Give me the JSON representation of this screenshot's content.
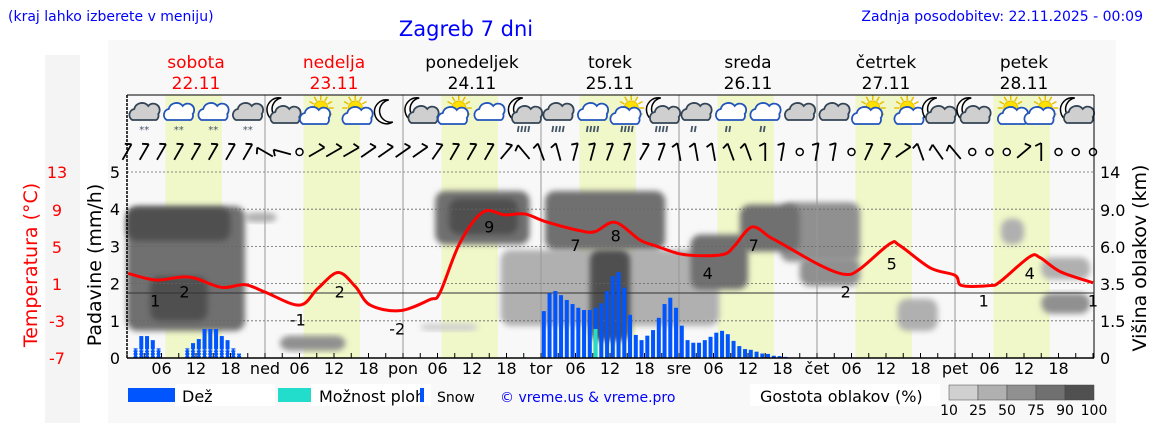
{
  "header": {
    "hint": "(kraj lahko izberete v meniju)",
    "title": "Zagreb 7 dni",
    "updated": "Zadnja posodobitev: 22.11.2025 - 00:09"
  },
  "days": [
    {
      "name": "sobota",
      "date": "22.11",
      "abbr": "",
      "color": "#ff0000"
    },
    {
      "name": "nedelja",
      "date": "23.11",
      "abbr": "ned",
      "color": "#ff0000"
    },
    {
      "name": "ponedeljek",
      "date": "24.11",
      "abbr": "pon",
      "color": "#000000"
    },
    {
      "name": "torek",
      "date": "25.11",
      "abbr": "tor",
      "color": "#000000"
    },
    {
      "name": "sreda",
      "date": "26.11",
      "abbr": "sre",
      "color": "#000000"
    },
    {
      "name": "četrtek",
      "date": "27.11",
      "abbr": "čet",
      "color": "#000000"
    },
    {
      "name": "petek",
      "date": "28.11",
      "abbr": "pet",
      "color": "#000000"
    }
  ],
  "hour_ticks": [
    "06",
    "12",
    "18"
  ],
  "weather_icons": [
    "cloud-snow",
    "cloud-snow",
    "cloud-snow",
    "cloud-snow",
    "moon-cloud",
    "sun-cloud",
    "sun-small-cloud",
    "moon",
    "moon-cloud",
    "sun-cloud",
    "cloud",
    "moon-cloud-rain",
    "cloud-rain",
    "cloud-rain",
    "sun-cloud-rain",
    "moon-cloud-rain",
    "cloud-light-rain",
    "cloud-light-rain",
    "cloud-light-rain",
    "cloud",
    "cloud",
    "sun-cloud",
    "sun-small-cloud",
    "moon-cloud",
    "moon-cloud",
    "sun-small-cloud",
    "sun-cloud",
    "moon-cloud"
  ],
  "wind_barbs": [
    30,
    30,
    30,
    30,
    30,
    30,
    30,
    30,
    -60,
    -75,
    "calm",
    60,
    60,
    60,
    55,
    55,
    55,
    55,
    35,
    30,
    30,
    30,
    40,
    -40,
    -20,
    -15,
    15,
    15,
    20,
    20,
    30,
    20,
    -10,
    -10,
    -10,
    -20,
    -20,
    0,
    10,
    "calm",
    10,
    10,
    "calm",
    25,
    30,
    55,
    -20,
    -35,
    -40,
    "calm",
    "calm",
    "calm",
    50,
    0,
    "calm",
    "calm",
    "calm"
  ],
  "chart_data": {
    "type": "meteogram",
    "x_unit": "hours from 22.11 00:00",
    "daylight_hours": [
      6.7,
      16.5
    ],
    "left_axis_temperature": {
      "label": "Temperatura (°C)",
      "ticks": [
        13,
        9,
        5,
        1,
        -3,
        -7
      ],
      "range": [
        -7,
        13
      ],
      "color": "#ff0000"
    },
    "left_axis_precip": {
      "label": "Padavine (mm/h)",
      "ticks": [
        0,
        1,
        2,
        3,
        4,
        5
      ],
      "range": [
        0,
        5
      ]
    },
    "right_axis_cloud": {
      "label": "Višina oblakov (km)",
      "ticks": [
        "0",
        "1.5",
        "3.5",
        "6.0",
        "9.0",
        "14"
      ]
    },
    "temperature": {
      "hours": [
        0.2,
        4.9,
        9.2,
        11.8,
        16.5,
        20.5,
        24,
        30,
        33.2,
        36.7,
        39.7,
        42.3,
        47.5,
        52.7,
        54.4,
        57.9,
        61.9,
        65.7,
        69.2,
        72.7,
        78.8,
        81.4,
        84.9,
        89.2,
        91.8,
        96.2,
        100.5,
        104,
        105.7,
        108.7,
        111.8,
        113.6,
        120.5,
        124.9,
        127.5,
        132.7,
        134.4,
        139.7,
        144,
        145.2,
        150.1,
        151.8,
        157,
        158.8,
        162.3,
        168
      ],
      "values": [
        2.1,
        1.4,
        1.7,
        1.6,
        0.6,
        0.9,
        0.1,
        -1.3,
        0.5,
        2.2,
        0.7,
        -1.3,
        -1.9,
        -0.7,
        0.0,
        5.4,
        8.7,
        8.4,
        8.5,
        7.7,
        6.7,
        6.6,
        7.6,
        5.7,
        5.1,
        4.2,
        4.0,
        4.2,
        5.1,
        7.1,
        6.0,
        5.4,
        3.0,
        2.0,
        2.6,
        5.3,
        5.1,
        2.7,
        1.9,
        0.8,
        0.8,
        1.2,
        3.9,
        3.8,
        2.3,
        1.1
      ],
      "color": "#ff0000"
    },
    "temperature_labels": [
      {
        "hour": 4.9,
        "value": "1"
      },
      {
        "hour": 10,
        "value": "2"
      },
      {
        "hour": 29.7,
        "value": "-1"
      },
      {
        "hour": 37,
        "value": "2"
      },
      {
        "hour": 47,
        "value": "-2"
      },
      {
        "hour": 63,
        "value": "9"
      },
      {
        "hour": 78,
        "value": "7"
      },
      {
        "hour": 85,
        "value": "8"
      },
      {
        "hour": 101,
        "value": "4"
      },
      {
        "hour": 109,
        "value": "7"
      },
      {
        "hour": 125,
        "value": "2"
      },
      {
        "hour": 133,
        "value": "5"
      },
      {
        "hour": 149,
        "value": "1"
      },
      {
        "hour": 157,
        "value": "4"
      },
      {
        "hour": 168,
        "value": "1"
      }
    ],
    "precipitation": [
      {
        "start_hour": 1,
        "snow": true,
        "values": [
          0.26,
          0.59,
          0.59,
          0.48,
          0.26
        ]
      },
      {
        "start_hour": 10,
        "snow": true,
        "values": [
          0.26,
          0.4,
          0.51,
          0.78,
          0.78,
          0.78,
          0.59,
          0.48,
          0.26,
          0.12
        ]
      },
      {
        "start_hour": 72,
        "snow": false,
        "values": [
          1.26,
          1.74,
          1.8,
          1.69,
          1.56,
          1.45,
          1.35,
          1.29,
          1.29,
          1.35,
          1.47,
          1.8,
          2.2,
          2.31,
          1.89,
          1.16,
          0.62,
          0.48,
          0.6,
          0.75,
          1.08,
          1.45,
          1.62,
          1.35,
          0.87,
          0.48,
          0.41,
          0.41,
          0.48,
          0.57,
          0.68,
          0.73,
          0.64,
          0.46,
          0.32,
          0.24,
          0.22,
          0.17,
          0.12,
          0.11,
          0.06,
          0.05,
          0.03
        ]
      }
    ],
    "showers_possible": [
      {
        "hour": 81,
        "value": 0.78
      }
    ],
    "precip_color": "#0055ff",
    "showers_color": "#22ddcc",
    "cloud_density_regions": [
      {
        "hours": [
          0,
          20.5
        ],
        "km": [
          1.1,
          9.5
        ],
        "density": 75
      },
      {
        "hours": [
          0,
          18
        ],
        "km": [
          6.5,
          9.3
        ],
        "density": 90
      },
      {
        "hours": [
          4,
          14
        ],
        "km": [
          1.5,
          4
        ],
        "density": 90
      },
      {
        "hours": [
          20.5,
          26
        ],
        "km": [
          8,
          8.8
        ],
        "density": 25
      },
      {
        "hours": [
          26.6,
          38
        ],
        "km": [
          0.3,
          0.9
        ],
        "density": 50
      },
      {
        "hours": [
          51,
          61
        ],
        "km": [
          1.1,
          1.4
        ],
        "density": 10
      },
      {
        "hours": [
          53.6,
          70
        ],
        "km": [
          6.2,
          11.5
        ],
        "density": 75
      },
      {
        "hours": [
          56,
          68
        ],
        "km": [
          7,
          10.5
        ],
        "density": 90
      },
      {
        "hours": [
          65,
          103
        ],
        "km": [
          1.3,
          5.8
        ],
        "density": 25
      },
      {
        "hours": [
          72.7,
          93.6
        ],
        "km": [
          5.8,
          11.5
        ],
        "density": 75
      },
      {
        "hours": [
          80.5,
          87.5
        ],
        "km": [
          0.7,
          5.8
        ],
        "density": 90
      },
      {
        "hours": [
          98,
          108
        ],
        "km": [
          3.2,
          7
        ],
        "density": 75
      },
      {
        "hours": [
          106.6,
          117
        ],
        "km": [
          5.7,
          9.7
        ],
        "density": 75
      },
      {
        "hours": [
          113.6,
          127.5
        ],
        "km": [
          5,
          10
        ],
        "density": 50
      },
      {
        "hours": [
          117,
          127.5
        ],
        "km": [
          3.4,
          5.3
        ],
        "density": 50
      },
      {
        "hours": [
          134,
          141
        ],
        "km": [
          1.1,
          2.7
        ],
        "density": 25
      },
      {
        "hours": [
          152,
          156
        ],
        "km": [
          6.2,
          8.3
        ],
        "density": 25
      },
      {
        "hours": [
          159,
          167.5
        ],
        "km": [
          3.8,
          5.3
        ],
        "density": 25
      },
      {
        "hours": [
          159,
          167.5
        ],
        "km": [
          1.9,
          3.0
        ],
        "density": 50
      }
    ],
    "cloud_density_scale": {
      "label": "Gostota oblakov (%)",
      "ticks": [
        "10",
        "25",
        "50",
        "75",
        "90",
        "100"
      ],
      "colors": [
        "#d0d0d0",
        "#b0b0b0",
        "#909090",
        "#707070",
        "#505050"
      ]
    }
  },
  "legend": {
    "rain": "Dež",
    "showers": "Možnost ploh",
    "snow": "Snow",
    "copyright": "© vreme.us & vreme.pro"
  }
}
